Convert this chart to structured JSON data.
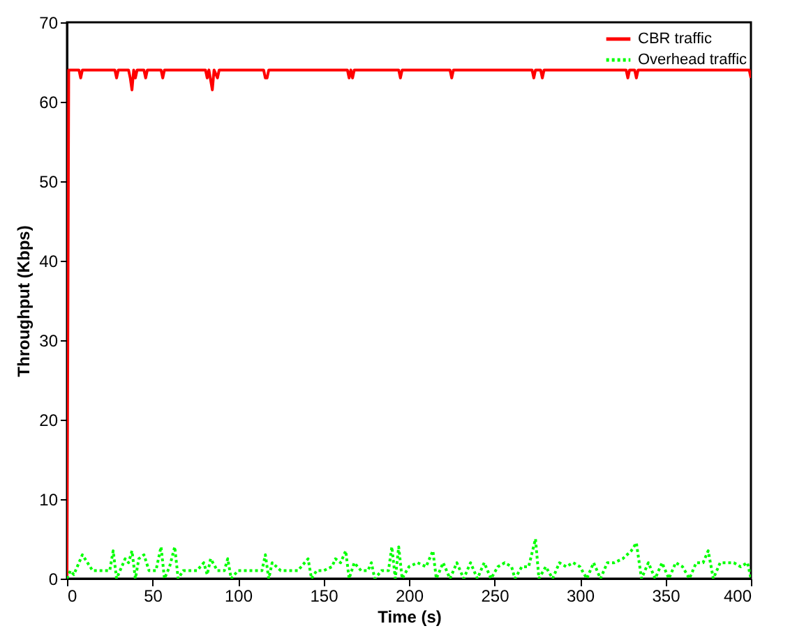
{
  "chart_data": {
    "type": "line",
    "xlabel": "Time (s)",
    "ylabel": "Throughput (Kbps)",
    "xlim": [
      0,
      400
    ],
    "xticks": [
      0,
      50,
      100,
      150,
      200,
      250,
      300,
      350,
      400
    ],
    "ylim": [
      0,
      70
    ],
    "yticks": [
      0,
      10,
      20,
      30,
      40,
      50,
      60,
      70
    ],
    "grid": false,
    "legend": "top right",
    "marker": "none",
    "series": [
      {
        "name": "CBR traffic",
        "color": "#ff0000",
        "line_style": "solid",
        "x": [
          0,
          1,
          7,
          8,
          9,
          28,
          29,
          30,
          36,
          37,
          38,
          39,
          40,
          41,
          45,
          46,
          47,
          55,
          56,
          57,
          81,
          82,
          83,
          85,
          86,
          88,
          89,
          115,
          116,
          117,
          118,
          164,
          165,
          166,
          167,
          168,
          194,
          195,
          196,
          224,
          225,
          226,
          272,
          273,
          274,
          277,
          278,
          279,
          327,
          328,
          329,
          332,
          333,
          334,
          399,
          400
        ],
        "values": [
          0,
          64,
          64,
          63,
          64,
          64,
          63,
          64,
          64,
          63,
          61.5,
          64,
          63,
          64,
          64,
          63,
          64,
          64,
          63,
          64,
          64,
          63,
          64,
          61.5,
          64,
          63,
          64,
          64,
          63,
          63,
          64,
          64,
          63,
          64,
          63,
          64,
          64,
          63,
          64,
          64,
          63,
          64,
          64,
          63,
          64,
          64,
          63,
          64,
          64,
          63,
          64,
          64,
          63,
          64,
          64,
          63
        ]
      },
      {
        "name": "Overhead traffic",
        "color": "#00ff00",
        "line_style": "dotted",
        "x": [
          0,
          2,
          4,
          6,
          9,
          12,
          15,
          20,
          25,
          27,
          29,
          32,
          34,
          36,
          38,
          40,
          42,
          45,
          48,
          52,
          55,
          57,
          60,
          63,
          65,
          68,
          72,
          76,
          80,
          82,
          84,
          88,
          92,
          94,
          96,
          100,
          105,
          110,
          114,
          116,
          118,
          120,
          125,
          130,
          135,
          141,
          143,
          146,
          150,
          155,
          157,
          160,
          163,
          165,
          168,
          172,
          176,
          178,
          180,
          184,
          188,
          190,
          192,
          194,
          196,
          200,
          205,
          210,
          214,
          216,
          220,
          224,
          228,
          232,
          236,
          240,
          244,
          248,
          252,
          256,
          260,
          262,
          266,
          270,
          274,
          276,
          280,
          284,
          288,
          292,
          296,
          300,
          304,
          308,
          312,
          316,
          320,
          325,
          330,
          333,
          336,
          340,
          344,
          348,
          352,
          356,
          360,
          364,
          368,
          372,
          375,
          378,
          382,
          386,
          390,
          394,
          398,
          400
        ],
        "values": [
          0,
          1,
          0.5,
          1.5,
          3,
          2,
          1,
          1,
          1,
          3.5,
          0,
          1.5,
          2.5,
          2,
          3.5,
          0,
          2.5,
          3,
          1,
          1,
          4,
          0,
          1.5,
          4,
          0,
          1,
          1,
          1,
          2,
          0.5,
          2.5,
          1,
          1,
          2.5,
          0,
          1,
          1,
          1,
          1,
          3,
          0,
          2,
          1,
          1,
          1,
          2.5,
          0,
          1,
          1,
          1.5,
          2.5,
          2,
          3.5,
          0,
          2,
          1,
          1,
          2,
          0,
          1,
          1,
          4,
          0,
          4,
          0,
          1.5,
          2,
          1.5,
          3.5,
          0,
          2,
          0,
          2,
          0,
          2,
          0,
          2,
          0,
          1.5,
          2,
          1.5,
          0,
          1.5,
          1.5,
          5,
          0,
          1.5,
          0,
          2,
          1.5,
          2,
          1.5,
          0,
          2,
          0,
          2,
          2,
          2.5,
          3.5,
          4.5,
          0,
          2,
          0,
          2,
          0,
          2,
          1.5,
          0,
          2,
          2,
          3.5,
          0,
          2,
          2,
          2,
          1.5,
          2,
          0
        ]
      }
    ]
  }
}
